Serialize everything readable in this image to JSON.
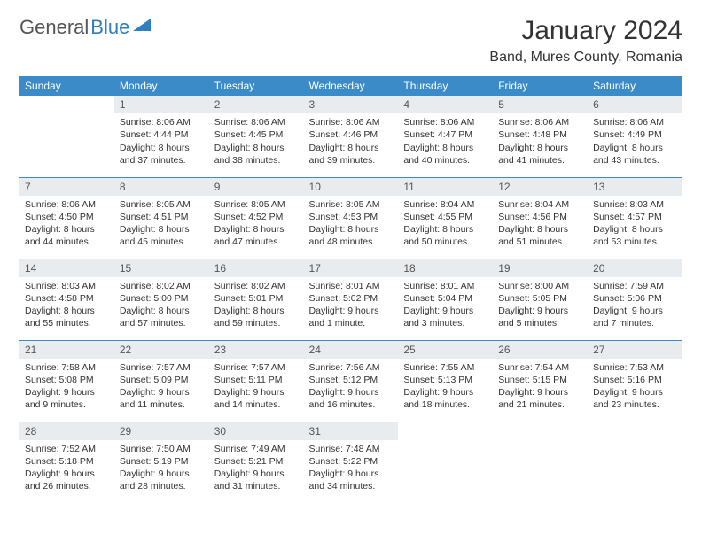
{
  "logo": {
    "text1": "General",
    "text2": "Blue"
  },
  "header": {
    "month": "January 2024",
    "location": "Band, Mures County, Romania"
  },
  "colors": {
    "header_bg": "#3b8bc9",
    "header_text": "#ffffff",
    "daynum_bg": "#e9ecef",
    "border": "#3b8bc9",
    "logo_gray": "#555555",
    "logo_blue": "#2f7fbf"
  },
  "weekdays": [
    "Sunday",
    "Monday",
    "Tuesday",
    "Wednesday",
    "Thursday",
    "Friday",
    "Saturday"
  ],
  "weeks": [
    [
      {
        "n": "",
        "sr": "",
        "ss": "",
        "dl": ""
      },
      {
        "n": "1",
        "sr": "Sunrise: 8:06 AM",
        "ss": "Sunset: 4:44 PM",
        "dl": "Daylight: 8 hours and 37 minutes."
      },
      {
        "n": "2",
        "sr": "Sunrise: 8:06 AM",
        "ss": "Sunset: 4:45 PM",
        "dl": "Daylight: 8 hours and 38 minutes."
      },
      {
        "n": "3",
        "sr": "Sunrise: 8:06 AM",
        "ss": "Sunset: 4:46 PM",
        "dl": "Daylight: 8 hours and 39 minutes."
      },
      {
        "n": "4",
        "sr": "Sunrise: 8:06 AM",
        "ss": "Sunset: 4:47 PM",
        "dl": "Daylight: 8 hours and 40 minutes."
      },
      {
        "n": "5",
        "sr": "Sunrise: 8:06 AM",
        "ss": "Sunset: 4:48 PM",
        "dl": "Daylight: 8 hours and 41 minutes."
      },
      {
        "n": "6",
        "sr": "Sunrise: 8:06 AM",
        "ss": "Sunset: 4:49 PM",
        "dl": "Daylight: 8 hours and 43 minutes."
      }
    ],
    [
      {
        "n": "7",
        "sr": "Sunrise: 8:06 AM",
        "ss": "Sunset: 4:50 PM",
        "dl": "Daylight: 8 hours and 44 minutes."
      },
      {
        "n": "8",
        "sr": "Sunrise: 8:05 AM",
        "ss": "Sunset: 4:51 PM",
        "dl": "Daylight: 8 hours and 45 minutes."
      },
      {
        "n": "9",
        "sr": "Sunrise: 8:05 AM",
        "ss": "Sunset: 4:52 PM",
        "dl": "Daylight: 8 hours and 47 minutes."
      },
      {
        "n": "10",
        "sr": "Sunrise: 8:05 AM",
        "ss": "Sunset: 4:53 PM",
        "dl": "Daylight: 8 hours and 48 minutes."
      },
      {
        "n": "11",
        "sr": "Sunrise: 8:04 AM",
        "ss": "Sunset: 4:55 PM",
        "dl": "Daylight: 8 hours and 50 minutes."
      },
      {
        "n": "12",
        "sr": "Sunrise: 8:04 AM",
        "ss": "Sunset: 4:56 PM",
        "dl": "Daylight: 8 hours and 51 minutes."
      },
      {
        "n": "13",
        "sr": "Sunrise: 8:03 AM",
        "ss": "Sunset: 4:57 PM",
        "dl": "Daylight: 8 hours and 53 minutes."
      }
    ],
    [
      {
        "n": "14",
        "sr": "Sunrise: 8:03 AM",
        "ss": "Sunset: 4:58 PM",
        "dl": "Daylight: 8 hours and 55 minutes."
      },
      {
        "n": "15",
        "sr": "Sunrise: 8:02 AM",
        "ss": "Sunset: 5:00 PM",
        "dl": "Daylight: 8 hours and 57 minutes."
      },
      {
        "n": "16",
        "sr": "Sunrise: 8:02 AM",
        "ss": "Sunset: 5:01 PM",
        "dl": "Daylight: 8 hours and 59 minutes."
      },
      {
        "n": "17",
        "sr": "Sunrise: 8:01 AM",
        "ss": "Sunset: 5:02 PM",
        "dl": "Daylight: 9 hours and 1 minute."
      },
      {
        "n": "18",
        "sr": "Sunrise: 8:01 AM",
        "ss": "Sunset: 5:04 PM",
        "dl": "Daylight: 9 hours and 3 minutes."
      },
      {
        "n": "19",
        "sr": "Sunrise: 8:00 AM",
        "ss": "Sunset: 5:05 PM",
        "dl": "Daylight: 9 hours and 5 minutes."
      },
      {
        "n": "20",
        "sr": "Sunrise: 7:59 AM",
        "ss": "Sunset: 5:06 PM",
        "dl": "Daylight: 9 hours and 7 minutes."
      }
    ],
    [
      {
        "n": "21",
        "sr": "Sunrise: 7:58 AM",
        "ss": "Sunset: 5:08 PM",
        "dl": "Daylight: 9 hours and 9 minutes."
      },
      {
        "n": "22",
        "sr": "Sunrise: 7:57 AM",
        "ss": "Sunset: 5:09 PM",
        "dl": "Daylight: 9 hours and 11 minutes."
      },
      {
        "n": "23",
        "sr": "Sunrise: 7:57 AM",
        "ss": "Sunset: 5:11 PM",
        "dl": "Daylight: 9 hours and 14 minutes."
      },
      {
        "n": "24",
        "sr": "Sunrise: 7:56 AM",
        "ss": "Sunset: 5:12 PM",
        "dl": "Daylight: 9 hours and 16 minutes."
      },
      {
        "n": "25",
        "sr": "Sunrise: 7:55 AM",
        "ss": "Sunset: 5:13 PM",
        "dl": "Daylight: 9 hours and 18 minutes."
      },
      {
        "n": "26",
        "sr": "Sunrise: 7:54 AM",
        "ss": "Sunset: 5:15 PM",
        "dl": "Daylight: 9 hours and 21 minutes."
      },
      {
        "n": "27",
        "sr": "Sunrise: 7:53 AM",
        "ss": "Sunset: 5:16 PM",
        "dl": "Daylight: 9 hours and 23 minutes."
      }
    ],
    [
      {
        "n": "28",
        "sr": "Sunrise: 7:52 AM",
        "ss": "Sunset: 5:18 PM",
        "dl": "Daylight: 9 hours and 26 minutes."
      },
      {
        "n": "29",
        "sr": "Sunrise: 7:50 AM",
        "ss": "Sunset: 5:19 PM",
        "dl": "Daylight: 9 hours and 28 minutes."
      },
      {
        "n": "30",
        "sr": "Sunrise: 7:49 AM",
        "ss": "Sunset: 5:21 PM",
        "dl": "Daylight: 9 hours and 31 minutes."
      },
      {
        "n": "31",
        "sr": "Sunrise: 7:48 AM",
        "ss": "Sunset: 5:22 PM",
        "dl": "Daylight: 9 hours and 34 minutes."
      },
      {
        "n": "",
        "sr": "",
        "ss": "",
        "dl": ""
      },
      {
        "n": "",
        "sr": "",
        "ss": "",
        "dl": ""
      },
      {
        "n": "",
        "sr": "",
        "ss": "",
        "dl": ""
      }
    ]
  ]
}
